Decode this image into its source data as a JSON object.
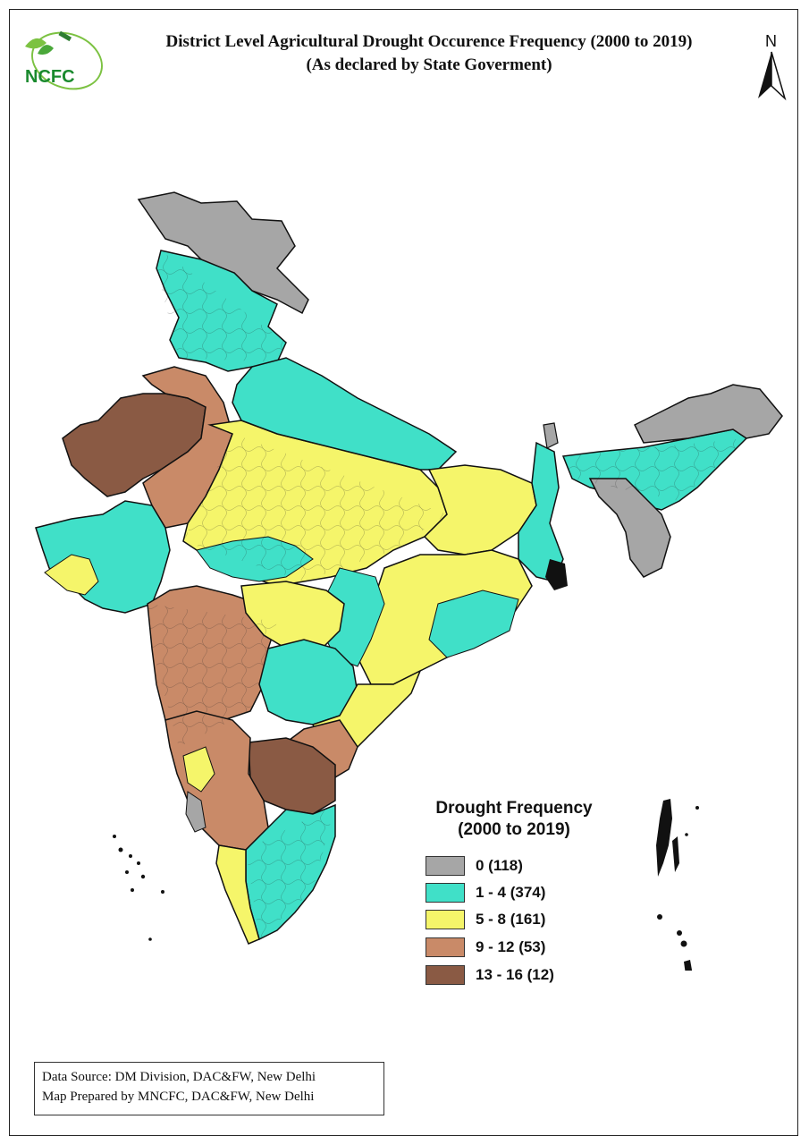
{
  "title": {
    "line1": "District Level Agricultural Drought Occurence Frequency (2000 to 2019)",
    "line2": "(As declared by State Goverment)"
  },
  "logo": {
    "text": "NCFC",
    "color_text": "#1a8a2e",
    "color_leaf": "#7cc242"
  },
  "north_arrow": {
    "label": "N"
  },
  "legend": {
    "title_line1": "Drought Frequency",
    "title_line2": "(2000 to 2019)",
    "items": [
      {
        "label": "0 (118)",
        "color": "#a6a6a6"
      },
      {
        "label": "1 - 4 (374)",
        "color": "#40e0c8"
      },
      {
        "label": "5 - 8 (161)",
        "color": "#f5f56a"
      },
      {
        "label": "9 - 12 (53)",
        "color": "#c98a68"
      },
      {
        "label": "13 - 16 (12)",
        "color": "#8a5a44"
      }
    ]
  },
  "source": {
    "line1": "Data Source: DM Division, DAC&FW, New Delhi",
    "line2": "Map Prepared by MNCFC, DAC&FW, New Delhi"
  }
}
